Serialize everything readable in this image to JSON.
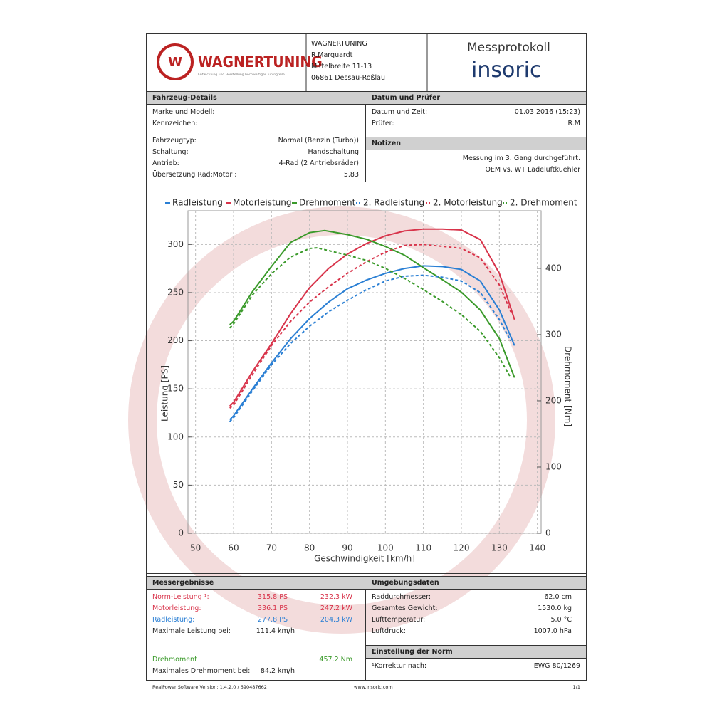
{
  "header": {
    "logo": "WAGNERTUNING",
    "logo_sub": "Entwicklung und Herstellung hochwertiger Tuningteile",
    "address": [
      "WAGNERTUNING",
      "R.Marquardt",
      "Mittelbreite 11-13",
      "06861 Dessau-Roßlau"
    ],
    "title": "Messprotokoll",
    "brand": "insoric"
  },
  "vehicle": {
    "title": "Fahrzeug-Details",
    "rows": [
      {
        "label": "Marke und Modell:"
      },
      {
        "label": "Kennzeichen:"
      },
      {
        "label": "Fahrzeugtyp:",
        "value": "Normal (Benzin (Turbo))"
      },
      {
        "label": "Schaltung:",
        "value": "Handschaltung"
      },
      {
        "label": "Antrieb:",
        "value": "4-Rad (2 Antriebsräder)"
      },
      {
        "label": "Übersetzung Rad:Motor :",
        "value": "5.83"
      }
    ]
  },
  "date": {
    "title": "Datum und Prüfer",
    "rows": [
      {
        "label": "Datum und Zeit:",
        "value": "01.03.2016 (15:23)"
      },
      {
        "label": "Prüfer:",
        "value": "R.M"
      }
    ]
  },
  "notes": {
    "title": "Notizen",
    "lines": [
      "Messung im 3. Gang durchgeführt.",
      "OEM vs. WT Ladeluftkuehler"
    ]
  },
  "chart_data": {
    "type": "line",
    "xlabel": "Geschwindigkeit [km/h]",
    "ylabel": "Leistung [PS]",
    "y2label": "Drehmoment [Nm]",
    "xlim": [
      48,
      141
    ],
    "xticks": [
      50,
      60,
      70,
      80,
      90,
      100,
      110,
      120,
      130,
      140
    ],
    "ylim": [
      0,
      335
    ],
    "yticks": [
      0,
      50,
      100,
      150,
      200,
      250,
      300
    ],
    "y2lim": [
      0,
      487
    ],
    "y2ticks": [
      0,
      100,
      200,
      300,
      400
    ],
    "grid": true,
    "series": [
      {
        "name": "Radleistung",
        "color": "#2a7fd4",
        "dash": false,
        "x": [
          59,
          60,
          65,
          70,
          75,
          80,
          85,
          90,
          95,
          100,
          105,
          110,
          115,
          120,
          125,
          130,
          134
        ],
        "values": [
          118,
          122,
          150,
          177,
          202,
          223,
          240,
          254,
          263,
          270,
          275,
          277.8,
          277,
          274,
          262,
          232,
          195
        ]
      },
      {
        "name": "Motorleistung",
        "color": "#d8334a",
        "dash": false,
        "x": [
          59,
          60,
          65,
          70,
          75,
          80,
          85,
          90,
          95,
          100,
          105,
          110,
          115,
          120,
          125,
          130,
          134
        ],
        "values": [
          132,
          136,
          168,
          197,
          228,
          255,
          275,
          290,
          301,
          309,
          314,
          316,
          316,
          315,
          305,
          270,
          222
        ]
      },
      {
        "name": "Drehmoment",
        "color": "#3a9a2a",
        "dash": false,
        "axis": "y2",
        "x": [
          59,
          60,
          65,
          70,
          75,
          80,
          84,
          90,
          95,
          100,
          105,
          110,
          115,
          120,
          125,
          130,
          134
        ],
        "values": [
          315,
          320,
          365,
          403,
          439,
          454,
          457.2,
          451,
          444,
          433,
          420,
          401,
          383,
          364,
          337,
          294,
          235
        ]
      },
      {
        "name": "2. Radleistung",
        "color": "#2a7fd4",
        "dash": true,
        "x": [
          59,
          60,
          65,
          70,
          75,
          80,
          85,
          90,
          95,
          100,
          105,
          110,
          115,
          120,
          125,
          130,
          133
        ],
        "values": [
          116,
          120,
          148,
          175,
          197,
          215,
          230,
          242,
          253,
          262,
          267,
          268,
          266,
          262,
          250,
          222,
          200
        ]
      },
      {
        "name": "2. Motorleistung",
        "color": "#d8334a",
        "dash": true,
        "x": [
          59,
          60,
          65,
          70,
          75,
          80,
          85,
          90,
          95,
          100,
          105,
          110,
          115,
          120,
          125,
          130,
          133
        ],
        "values": [
          130,
          133,
          165,
          195,
          220,
          240,
          256,
          270,
          282,
          292,
          299,
          300,
          298,
          296,
          286,
          258,
          230
        ]
      },
      {
        "name": "2. Drehmoment",
        "color": "#3a9a2a",
        "dash": true,
        "axis": "y2",
        "x": [
          59,
          60,
          65,
          70,
          75,
          80,
          82,
          90,
          95,
          100,
          105,
          110,
          115,
          120,
          125,
          130,
          133
        ],
        "values": [
          310,
          316,
          360,
          392,
          417,
          430,
          431,
          420,
          412,
          400,
          385,
          368,
          350,
          330,
          305,
          265,
          235
        ]
      }
    ]
  },
  "results": {
    "title": "Messergebnisse",
    "rows": [
      {
        "label": "Norm-Leistung ¹:",
        "value": "315.8 PS",
        "value2": "232.3 kW",
        "color": "#d8334a"
      },
      {
        "label": "Motorleistung:",
        "value": "336.1 PS",
        "value2": "247.2 kW",
        "color": "#d8334a"
      },
      {
        "label": "Radleistung:",
        "value": "277.8 PS",
        "value2": "204.3 kW",
        "color": "#2a7fd4"
      },
      {
        "label": "Maximale Leistung bei:",
        "value": "111.4 km/h",
        "color": "#222222"
      },
      {
        "label": "Drehmoment",
        "value2": "457.2 Nm",
        "color": "#3a9a2a"
      },
      {
        "label": "Maximales Drehmoment bei:",
        "value": "84.2 km/h",
        "color": "#222222"
      }
    ]
  },
  "environment": {
    "title": "Umgebungsdaten",
    "rows": [
      {
        "label": "Raddurchmesser:",
        "value": "62.0 cm"
      },
      {
        "label": "Gesamtes Gewicht:",
        "value": "1530.0 kg"
      },
      {
        "label": "Lufttemperatur:",
        "value": "5.0 °C"
      },
      {
        "label": "Luftdruck:",
        "value": "1007.0 hPa"
      }
    ]
  },
  "norm": {
    "title": "Einstellung der Norm",
    "rows": [
      {
        "label": "¹Korrektur nach:",
        "value": "EWG 80/1269"
      }
    ]
  },
  "footer": {
    "software": "RealPower Software Version: 1.4.2.0 / 690487662",
    "url": "www.insoric.com",
    "page": "1/1"
  }
}
